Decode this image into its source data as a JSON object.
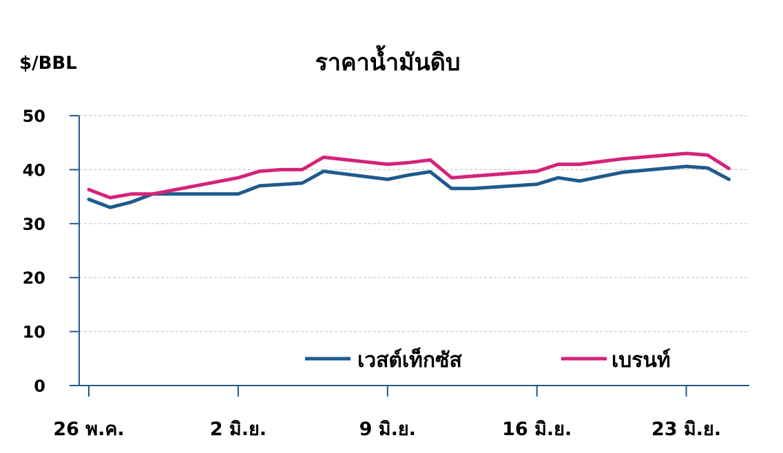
{
  "chart_data": {
    "type": "line",
    "title": "ราคาน้ำมันดิบ",
    "ylabel": "$/BBL",
    "xlabel": "",
    "ylim": [
      0,
      50
    ],
    "yticks": [
      "0",
      "10",
      "20",
      "30",
      "40",
      "50"
    ],
    "xtick_labels": [
      "26 พ.ค.",
      "2 มิ.ย.",
      "9 มิ.ย.",
      "16 มิ.ย.",
      "23 มิ.ย."
    ],
    "xtick_index": [
      0,
      7,
      14,
      21,
      28
    ],
    "grid": true,
    "legend_position": "bottom-right",
    "x": [
      "26 พ.ค.",
      "27 พ.ค.",
      "28 พ.ค.",
      "29 พ.ค.",
      "30 พ.ค.",
      "31 พ.ค.",
      "1 มิ.ย.",
      "2 มิ.ย.",
      "3 มิ.ย.",
      "4 มิ.ย.",
      "5 มิ.ย.",
      "6 มิ.ย.",
      "7 มิ.ย.",
      "8 มิ.ย.",
      "9 มิ.ย.",
      "10 มิ.ย.",
      "11 มิ.ย.",
      "12 มิ.ย.",
      "13 มิ.ย.",
      "14 มิ.ย.",
      "15 มิ.ย.",
      "16 มิ.ย.",
      "17 มิ.ย.",
      "18 มิ.ย.",
      "19 มิ.ย.",
      "20 มิ.ย.",
      "21 มิ.ย.",
      "22 มิ.ย.",
      "23 มิ.ย.",
      "24 มิ.ย."
    ],
    "series": [
      {
        "name": "เวสต์เท็กซัส",
        "color": "#1f5a8c",
        "points": [
          [
            0,
            34.5
          ],
          [
            1,
            33.0
          ],
          [
            2,
            34.0
          ],
          [
            3,
            35.5
          ],
          [
            6,
            35.5
          ],
          [
            7,
            35.5
          ],
          [
            8,
            37.0
          ],
          [
            10,
            37.5
          ],
          [
            11,
            39.7
          ],
          [
            14,
            38.2
          ],
          [
            15,
            39.0
          ],
          [
            16,
            39.6
          ],
          [
            17,
            36.5
          ],
          [
            18,
            36.5
          ],
          [
            21,
            37.3
          ],
          [
            22,
            38.5
          ],
          [
            23,
            37.9
          ],
          [
            25,
            39.5
          ],
          [
            28,
            40.6
          ],
          [
            29,
            40.3
          ],
          [
            30,
            38.2
          ]
        ]
      },
      {
        "name": "เบรนท์",
        "color": "#d4237a",
        "points": [
          [
            0,
            36.3
          ],
          [
            1,
            34.8
          ],
          [
            2,
            35.5
          ],
          [
            3,
            35.5
          ],
          [
            7,
            38.5
          ],
          [
            8,
            39.7
          ],
          [
            9,
            40.0
          ],
          [
            10,
            40.0
          ],
          [
            11,
            42.3
          ],
          [
            14,
            41.0
          ],
          [
            15,
            41.3
          ],
          [
            16,
            41.8
          ],
          [
            17,
            38.5
          ],
          [
            21,
            39.7
          ],
          [
            22,
            41.0
          ],
          [
            23,
            41.0
          ],
          [
            25,
            42.0
          ],
          [
            28,
            43.0
          ],
          [
            29,
            42.7
          ],
          [
            30,
            40.2
          ]
        ]
      }
    ]
  }
}
